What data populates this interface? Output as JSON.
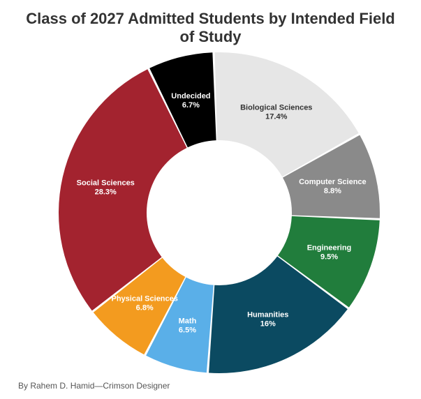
{
  "chart_data": {
    "type": "pie",
    "title": "Class of 2027 Admitted Students by Intended Field of Study",
    "categories": [
      "Biological Sciences",
      "Computer Science",
      "Engineering",
      "Humanities",
      "Math",
      "Physical Sciences",
      "Social Sciences",
      "Undecided"
    ],
    "values": [
      17.4,
      8.8,
      9.5,
      16,
      6.5,
      6.8,
      28.3,
      6.7
    ],
    "value_labels": [
      "17.4%",
      "8.8%",
      "9.5%",
      "16%",
      "6.5%",
      "6.8%",
      "28.3%",
      "6.7%"
    ],
    "colors": [
      "#e6e6e6",
      "#8a8a8a",
      "#217d3c",
      "#0b4a61",
      "#5aafe8",
      "#f39b1f",
      "#a3232f",
      "#000000"
    ],
    "label_colors": [
      "#333333",
      "#ffffff",
      "#ffffff",
      "#ffffff",
      "#ffffff",
      "#ffffff",
      "#ffffff",
      "#ffffff"
    ],
    "donut": true,
    "legend": "none",
    "unit": "%"
  },
  "credit": "By Rahem D. Hamid—Crimson Designer"
}
